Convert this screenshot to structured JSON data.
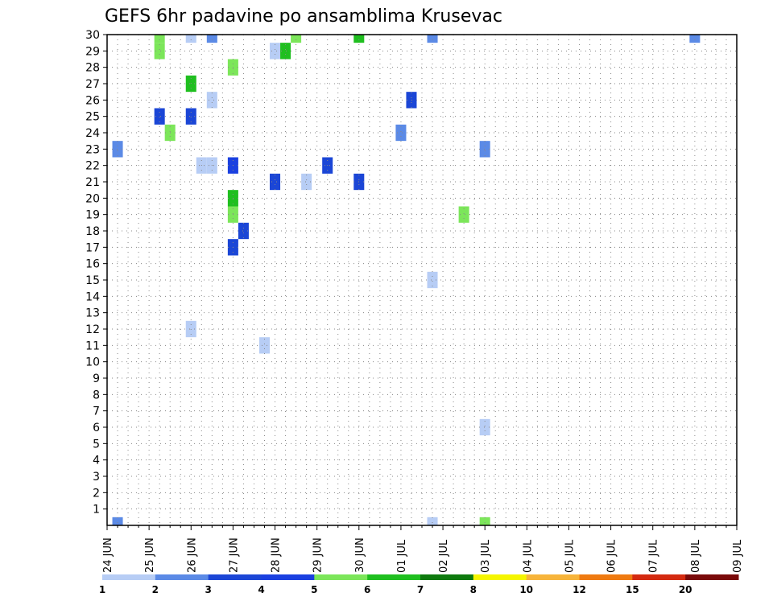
{
  "chart_data": {
    "type": "heatmap",
    "title": "GEFS 6hr padavine po ansamblima Krusevac",
    "x_tick_labels": [
      "24 JUN",
      "25 JUN",
      "26 JUN",
      "27 JUN",
      "28 JUN",
      "29 JUN",
      "30 JUN",
      "01 JUL",
      "02 JUL",
      "03 JUL",
      "04 JUL",
      "05 JUL",
      "06 JUL",
      "07 JUL",
      "08 JUL",
      "09 JUL"
    ],
    "y_tick_labels": [
      "1",
      "2",
      "3",
      "4",
      "5",
      "6",
      "7",
      "8",
      "9",
      "10",
      "11",
      "12",
      "13",
      "14",
      "15",
      "16",
      "17",
      "18",
      "19",
      "20",
      "21",
      "22",
      "23",
      "24",
      "25",
      "26",
      "27",
      "28",
      "29",
      "30"
    ],
    "members": 30,
    "timesteps": 61,
    "timestep_hours": 6,
    "xlim": [
      "24 JUN 00Z",
      "09 JUL 00Z"
    ],
    "ylim": [
      0,
      30
    ],
    "grid": true,
    "legend": {
      "placement": "bottom",
      "levels": [
        "1",
        "2",
        "3",
        "4",
        "5",
        "6",
        "7",
        "8",
        "10",
        "12",
        "15",
        "20"
      ],
      "colors": [
        "#b7cdf5",
        "#5b8ae6",
        "#1b46d6",
        "#1a40e0",
        "#7ce65a",
        "#1fbf1f",
        "#0e7a0e",
        "#f5f500",
        "#f7b43a",
        "#ef7a10",
        "#d42a10",
        "#7a0a0a"
      ]
    },
    "cells": [
      [
        0,
        1,
        2
      ],
      [
        23,
        1,
        2
      ],
      [
        37,
        1,
        1
      ],
      [
        58,
        1,
        2
      ],
      [
        41,
        2,
        2
      ],
      [
        45,
        2,
        2
      ],
      [
        47,
        2,
        3
      ],
      [
        50,
        2,
        5
      ],
      [
        46,
        3,
        3
      ],
      [
        49,
        3,
        3
      ],
      [
        52,
        3,
        2
      ],
      [
        60,
        3,
        3
      ],
      [
        42,
        4,
        2
      ],
      [
        43,
        4,
        10
      ],
      [
        45,
        4,
        10
      ],
      [
        47,
        4,
        12
      ],
      [
        57,
        4,
        1
      ],
      [
        58,
        4,
        4
      ],
      [
        25,
        5,
        3
      ],
      [
        29,
        5,
        5
      ],
      [
        30,
        5,
        5
      ],
      [
        33,
        5,
        2
      ],
      [
        39,
        5,
        6
      ],
      [
        44,
        5,
        6
      ],
      [
        45,
        5,
        4
      ],
      [
        24,
        6,
        5
      ],
      [
        39,
        6,
        3
      ],
      [
        44,
        6,
        7
      ],
      [
        53,
        6,
        4
      ],
      [
        56,
        6,
        2
      ],
      [
        59,
        6,
        5
      ],
      [
        12,
        8,
        1
      ],
      [
        25,
        8,
        3
      ],
      [
        27,
        8,
        6
      ],
      [
        30,
        8,
        1
      ],
      [
        31,
        8,
        10
      ],
      [
        40,
        8,
        7
      ],
      [
        51,
        8,
        5
      ],
      [
        22,
        9,
        1
      ],
      [
        22,
        10,
        1
      ],
      [
        26,
        10,
        1
      ],
      [
        30,
        10,
        2
      ],
      [
        34,
        11,
        2
      ],
      [
        42,
        11,
        1
      ],
      [
        45,
        11,
        1
      ],
      [
        52,
        11,
        1
      ],
      [
        17,
        12,
        3
      ],
      [
        19,
        12,
        5
      ],
      [
        20,
        12,
        6
      ],
      [
        22,
        12,
        4
      ],
      [
        28,
        12,
        5
      ],
      [
        32,
        12,
        5
      ],
      [
        18,
        13,
        3
      ],
      [
        41,
        13,
        2
      ],
      [
        38,
        14,
        2
      ],
      [
        43,
        14,
        3
      ],
      [
        52,
        14,
        6
      ],
      [
        11,
        15,
        1
      ],
      [
        36,
        15,
        1
      ],
      [
        48,
        15,
        7
      ],
      [
        21,
        16,
        3
      ],
      [
        29,
        16,
        1
      ],
      [
        39,
        16,
        4
      ],
      [
        49,
        16,
        2
      ],
      [
        52,
        16,
        1
      ],
      [
        54,
        16,
        5
      ],
      [
        29,
        17,
        6
      ],
      [
        31,
        17,
        2
      ],
      [
        39,
        17,
        1
      ],
      [
        51,
        17,
        4
      ],
      [
        30,
        18,
        5
      ],
      [
        37,
        18,
        2
      ],
      [
        41,
        18,
        6
      ],
      [
        42,
        18,
        4
      ],
      [
        45,
        18,
        6
      ],
      [
        46,
        18,
        4
      ],
      [
        52,
        18,
        3
      ],
      [
        21,
        19,
        1
      ],
      [
        36,
        19,
        3
      ],
      [
        41,
        20,
        4
      ],
      [
        45,
        20,
        3
      ],
      [
        48,
        20,
        6
      ],
      [
        49,
        20,
        4
      ],
      [
        50,
        20,
        4
      ],
      [
        51,
        20,
        6
      ],
      [
        22,
        21,
        3
      ],
      [
        39,
        21,
        3
      ],
      [
        42,
        21,
        6
      ],
      [
        47,
        21,
        4
      ],
      [
        42,
        22,
        2
      ],
      [
        48,
        22,
        5
      ],
      [
        50,
        22,
        5
      ],
      [
        52,
        22,
        4
      ],
      [
        47,
        23,
        1
      ],
      [
        51,
        23,
        7
      ],
      [
        53,
        23,
        3
      ],
      [
        21,
        24,
        3
      ],
      [
        30,
        24,
        6
      ],
      [
        43,
        24,
        1
      ],
      [
        50,
        24,
        6
      ],
      [
        35,
        25,
        1
      ],
      [
        40,
        25,
        5
      ],
      [
        33,
        26,
        5
      ],
      [
        48,
        26,
        1
      ],
      [
        52,
        26,
        12
      ],
      [
        56,
        26,
        2
      ],
      [
        59,
        26,
        3
      ],
      [
        33,
        27,
        1
      ],
      [
        34,
        27,
        4
      ],
      [
        40,
        27,
        1
      ],
      [
        46,
        27,
        3
      ],
      [
        47,
        27,
        2
      ],
      [
        55,
        27,
        2
      ],
      [
        24,
        28,
        2
      ],
      [
        32,
        28,
        3
      ],
      [
        39,
        28,
        3
      ],
      [
        47,
        28,
        10
      ],
      [
        55,
        28,
        2
      ],
      [
        60,
        28,
        10
      ],
      [
        26,
        29,
        3
      ],
      [
        33,
        29,
        4
      ],
      [
        41,
        29,
        5
      ],
      [
        56,
        29,
        1
      ],
      [
        38,
        30,
        3
      ],
      [
        39,
        30,
        3
      ],
      [
        0,
        31,
        1
      ],
      [
        15,
        31,
        1
      ],
      [
        30,
        31,
        2
      ],
      [
        44,
        31,
        1
      ],
      [
        35,
        33,
        2
      ],
      [
        43,
        33,
        3
      ],
      [
        44,
        33,
        3
      ],
      [
        55,
        33,
        1
      ],
      [
        19,
        34,
        5
      ],
      [
        44,
        34,
        1
      ],
      [
        59,
        34,
        6
      ],
      [
        40,
        35,
        2
      ],
      [
        0,
        36,
        5
      ],
      [
        6,
        36,
        1
      ],
      [
        23,
        36,
        2
      ],
      [
        42,
        36,
        3
      ],
      [
        33,
        37,
        4
      ],
      [
        38,
        37,
        1
      ],
      [
        40,
        37,
        1
      ],
      [
        43,
        37,
        2
      ],
      [
        52,
        37,
        3
      ],
      [
        38,
        38,
        1
      ],
      [
        41,
        38,
        5
      ],
      [
        43,
        38,
        2
      ],
      [
        46,
        38,
        3
      ],
      [
        54,
        38,
        5
      ],
      [
        57,
        38,
        4
      ],
      [
        43,
        39,
        1
      ],
      [
        45,
        39,
        6
      ],
      [
        46,
        39,
        5
      ],
      [
        50,
        39,
        1
      ],
      [
        52,
        39,
        8
      ],
      [
        54,
        39,
        3
      ],
      [
        43,
        40,
        1
      ],
      [
        44,
        40,
        1
      ],
      [
        50,
        40,
        4
      ],
      [
        52,
        40,
        1
      ],
      [
        56,
        40,
        1
      ],
      [
        59,
        40,
        1
      ],
      [
        44,
        41,
        1
      ],
      [
        50,
        41,
        1
      ],
      [
        51,
        41,
        1
      ],
      [
        54,
        41,
        4
      ],
      [
        45,
        42,
        12
      ],
      [
        46,
        42,
        3
      ],
      [
        47,
        42,
        7
      ],
      [
        51,
        42,
        4
      ],
      [
        48,
        43,
        1
      ],
      [
        50,
        43,
        2
      ],
      [
        51,
        43,
        7
      ],
      [
        56,
        43,
        5
      ],
      [
        45,
        44,
        4
      ],
      [
        48,
        44,
        5
      ],
      [
        51,
        44,
        1
      ],
      [
        53,
        44,
        2
      ],
      [
        54,
        44,
        2
      ],
      [
        46,
        45,
        1
      ],
      [
        52,
        45,
        7
      ],
      [
        55,
        45,
        7
      ],
      [
        41,
        46,
        3
      ],
      [
        43,
        46,
        8
      ],
      [
        48,
        46,
        8
      ],
      [
        49,
        46,
        2
      ],
      [
        52,
        46,
        4
      ],
      [
        57,
        46,
        1
      ],
      [
        59,
        46,
        1
      ],
      [
        47,
        47,
        5
      ],
      [
        48,
        47,
        6
      ],
      [
        51,
        47,
        1
      ],
      [
        41,
        48,
        3
      ],
      [
        45,
        48,
        2
      ],
      [
        47,
        48,
        3
      ],
      [
        45,
        49,
        3
      ],
      [
        46,
        49,
        3
      ],
      [
        47,
        49,
        12
      ],
      [
        49,
        49,
        2
      ],
      [
        45,
        50,
        2
      ],
      [
        52,
        50,
        3
      ],
      [
        53,
        50,
        6
      ],
      [
        54,
        50,
        2
      ],
      [
        55,
        50,
        2
      ],
      [
        41,
        51,
        3
      ],
      [
        46,
        51,
        2
      ],
      [
        52,
        51,
        1
      ],
      [
        55,
        51,
        2
      ],
      [
        41,
        52,
        2
      ],
      [
        43,
        52,
        2
      ],
      [
        46,
        52,
        2
      ],
      [
        50,
        52,
        1
      ],
      [
        46,
        53,
        10
      ],
      [
        50,
        53,
        2
      ],
      [
        50,
        54,
        1
      ],
      [
        52,
        54,
        2
      ],
      [
        53,
        54,
        2
      ],
      [
        55,
        54,
        1
      ],
      [
        56,
        54,
        1
      ],
      [
        49,
        55,
        1
      ],
      [
        52,
        55,
        3
      ],
      [
        54,
        55,
        6
      ],
      [
        30,
        56,
        2
      ],
      [
        41,
        56,
        2
      ],
      [
        46,
        56,
        2
      ],
      [
        52,
        56,
        3
      ],
      [
        55,
        56,
        6
      ],
      [
        43,
        57,
        4
      ],
      [
        46,
        57,
        3
      ],
      [
        56,
        58,
        2
      ],
      [
        58,
        58,
        2
      ],
      [
        33,
        59,
        2
      ],
      [
        35,
        59,
        1
      ],
      [
        54,
        59,
        3
      ],
      [
        42,
        60,
        3
      ],
      [
        44,
        60,
        6
      ],
      [
        46,
        60,
        10
      ],
      [
        47,
        60,
        10
      ]
    ]
  }
}
